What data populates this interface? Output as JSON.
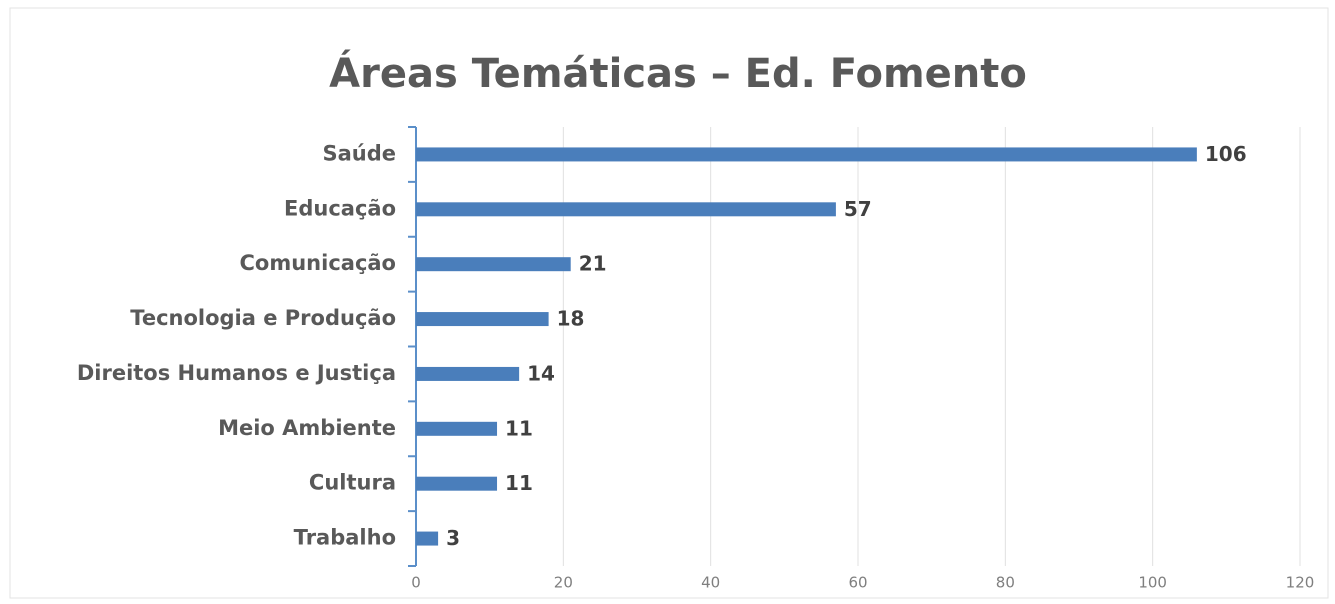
{
  "chart_data": {
    "type": "barh",
    "title": "Áreas Temáticas – Ed. Fomento",
    "categories": [
      "Saúde",
      "Educação",
      "Comunicação",
      "Tecnologia e Produção",
      "Direitos Humanos e Justiça",
      "Meio Ambiente",
      "Cultura",
      "Trabalho"
    ],
    "values": [
      106,
      57,
      21,
      18,
      14,
      11,
      11,
      3
    ],
    "color": "#4a7ebb",
    "xlim": [
      0,
      120
    ],
    "xticks": [
      0,
      20,
      40,
      60,
      80,
      100,
      120
    ],
    "grid": true
  }
}
